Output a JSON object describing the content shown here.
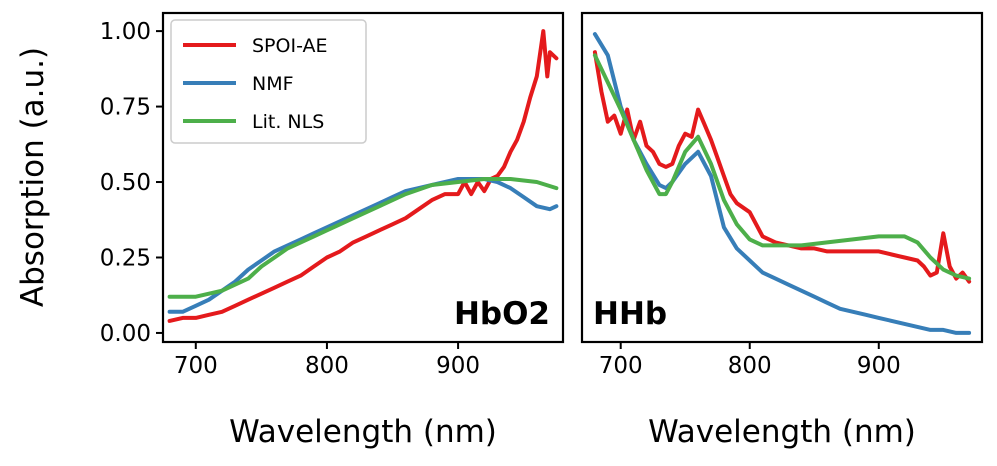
{
  "chart_data": [
    {
      "type": "line",
      "panel_label": "HbO2",
      "xlabel": "Wavelength (nm)",
      "ylabel": "Absorption (a.u.)",
      "xlim": [
        675,
        980
      ],
      "ylim": [
        -0.03,
        1.06
      ],
      "xticks": [
        700,
        800,
        900
      ],
      "xtick_labels": [
        "700",
        "800",
        "900"
      ],
      "yticks": [
        0,
        0.25,
        0.5,
        0.75,
        1.0
      ],
      "ytick_labels": [
        "0.00",
        "0.25",
        "0.50",
        "0.75",
        "1.00"
      ],
      "legend": {
        "location": "upper-left",
        "entries": [
          "SPOI-AE",
          "NMF",
          "Lit. NLS"
        ]
      },
      "series": [
        {
          "name": "SPOI-AE",
          "color": "#e41a1c",
          "x": [
            680,
            690,
            700,
            710,
            720,
            730,
            740,
            750,
            760,
            770,
            780,
            790,
            800,
            810,
            820,
            830,
            840,
            850,
            860,
            870,
            880,
            890,
            900,
            905,
            910,
            915,
            920,
            925,
            930,
            935,
            940,
            945,
            950,
            955,
            960,
            962,
            965,
            968,
            970,
            975
          ],
          "y": [
            0.04,
            0.05,
            0.05,
            0.06,
            0.07,
            0.09,
            0.11,
            0.13,
            0.15,
            0.17,
            0.19,
            0.22,
            0.25,
            0.27,
            0.3,
            0.32,
            0.34,
            0.36,
            0.38,
            0.41,
            0.44,
            0.46,
            0.46,
            0.5,
            0.46,
            0.5,
            0.47,
            0.51,
            0.52,
            0.55,
            0.6,
            0.64,
            0.7,
            0.78,
            0.85,
            0.91,
            1.0,
            0.85,
            0.93,
            0.91
          ]
        },
        {
          "name": "NMF",
          "color": "#377eb8",
          "x": [
            680,
            690,
            700,
            710,
            720,
            730,
            740,
            750,
            760,
            770,
            780,
            790,
            800,
            810,
            820,
            830,
            840,
            850,
            860,
            870,
            880,
            890,
            900,
            910,
            920,
            930,
            940,
            950,
            960,
            970,
            975
          ],
          "y": [
            0.07,
            0.07,
            0.09,
            0.11,
            0.14,
            0.17,
            0.21,
            0.24,
            0.27,
            0.29,
            0.31,
            0.33,
            0.35,
            0.37,
            0.39,
            0.41,
            0.43,
            0.45,
            0.47,
            0.48,
            0.49,
            0.5,
            0.51,
            0.51,
            0.51,
            0.5,
            0.48,
            0.45,
            0.42,
            0.41,
            0.42
          ]
        },
        {
          "name": "Lit. NLS",
          "color": "#4daf4a",
          "x": [
            680,
            700,
            720,
            740,
            750,
            760,
            770,
            780,
            790,
            800,
            810,
            820,
            840,
            860,
            880,
            900,
            920,
            940,
            960,
            975
          ],
          "y": [
            0.12,
            0.12,
            0.14,
            0.18,
            0.22,
            0.25,
            0.28,
            0.3,
            0.32,
            0.34,
            0.36,
            0.38,
            0.42,
            0.46,
            0.49,
            0.5,
            0.51,
            0.51,
            0.5,
            0.48
          ]
        }
      ]
    },
    {
      "type": "line",
      "panel_label": "HHb",
      "xlabel": "Wavelength (nm)",
      "ylabel": "",
      "xlim": [
        670,
        980
      ],
      "ylim": [
        -0.03,
        1.06
      ],
      "xticks": [
        700,
        800,
        900
      ],
      "xtick_labels": [
        "700",
        "800",
        "900"
      ],
      "series": [
        {
          "name": "SPOI-AE",
          "color": "#e41a1c",
          "x": [
            680,
            685,
            690,
            695,
            700,
            705,
            710,
            715,
            720,
            725,
            730,
            735,
            740,
            745,
            750,
            755,
            760,
            765,
            770,
            775,
            780,
            785,
            790,
            800,
            810,
            820,
            830,
            840,
            850,
            860,
            870,
            880,
            890,
            900,
            910,
            920,
            930,
            935,
            940,
            945,
            950,
            955,
            960,
            965,
            970
          ],
          "y": [
            0.93,
            0.8,
            0.7,
            0.72,
            0.66,
            0.74,
            0.64,
            0.7,
            0.62,
            0.6,
            0.56,
            0.55,
            0.56,
            0.62,
            0.66,
            0.65,
            0.74,
            0.69,
            0.64,
            0.58,
            0.52,
            0.46,
            0.43,
            0.4,
            0.32,
            0.3,
            0.29,
            0.28,
            0.28,
            0.27,
            0.27,
            0.27,
            0.27,
            0.27,
            0.26,
            0.25,
            0.24,
            0.22,
            0.19,
            0.2,
            0.33,
            0.22,
            0.18,
            0.2,
            0.17
          ]
        },
        {
          "name": "NMF",
          "color": "#377eb8",
          "x": [
            680,
            690,
            700,
            710,
            720,
            730,
            735,
            740,
            750,
            760,
            770,
            780,
            790,
            800,
            810,
            820,
            830,
            840,
            850,
            860,
            870,
            880,
            890,
            900,
            910,
            920,
            930,
            940,
            950,
            960,
            970
          ],
          "y": [
            0.99,
            0.92,
            0.75,
            0.64,
            0.56,
            0.49,
            0.48,
            0.5,
            0.56,
            0.6,
            0.52,
            0.35,
            0.28,
            0.24,
            0.2,
            0.18,
            0.16,
            0.14,
            0.12,
            0.1,
            0.08,
            0.07,
            0.06,
            0.05,
            0.04,
            0.03,
            0.02,
            0.01,
            0.01,
            0.0,
            0.0
          ]
        },
        {
          "name": "Lit. NLS",
          "color": "#4daf4a",
          "x": [
            680,
            690,
            700,
            710,
            720,
            730,
            735,
            740,
            750,
            760,
            770,
            780,
            790,
            800,
            810,
            820,
            830,
            840,
            860,
            880,
            900,
            910,
            920,
            930,
            940,
            950,
            960,
            970
          ],
          "y": [
            0.92,
            0.83,
            0.74,
            0.64,
            0.54,
            0.46,
            0.46,
            0.5,
            0.6,
            0.65,
            0.56,
            0.44,
            0.36,
            0.31,
            0.29,
            0.29,
            0.29,
            0.29,
            0.3,
            0.31,
            0.32,
            0.32,
            0.32,
            0.3,
            0.25,
            0.21,
            0.19,
            0.18
          ]
        }
      ]
    }
  ]
}
